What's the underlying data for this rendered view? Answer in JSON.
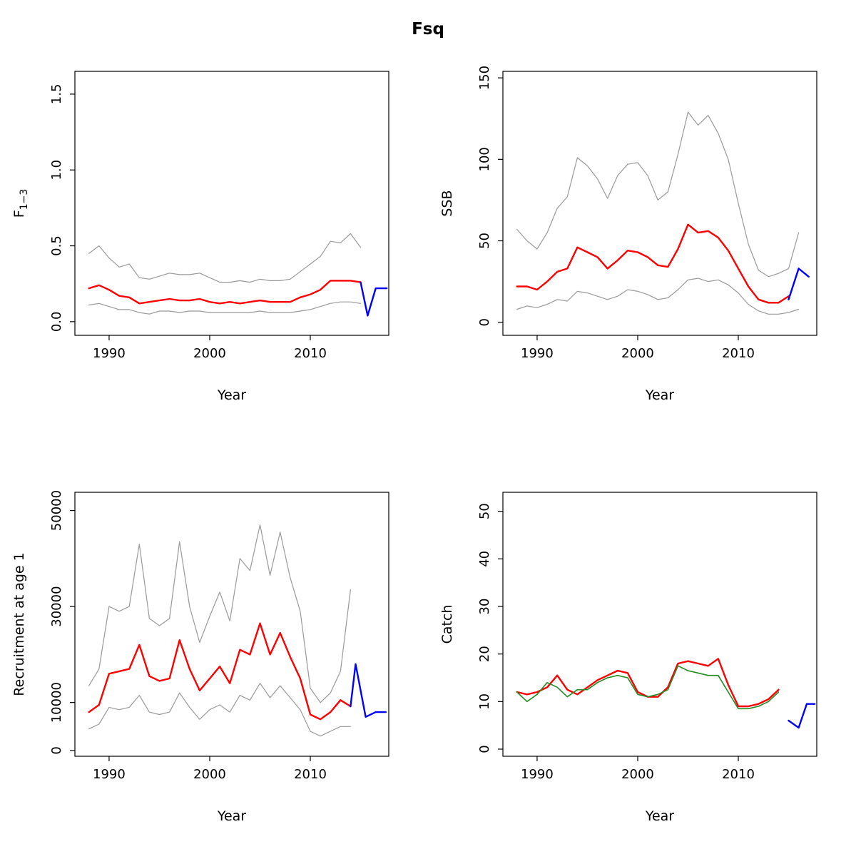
{
  "title": "Fsq",
  "colors": {
    "estimate": "#ff0000",
    "forecast": "#0000ff",
    "confidence_interval": "#999999",
    "observed": "#228b22",
    "axis": "#000000"
  },
  "chart_data": [
    {
      "type": "line",
      "panel": "fishing-mortality",
      "xlabel": "Year",
      "ylabel": "F",
      "ylabel_sub": "1−3",
      "xlim": [
        1986.6,
        2017.8
      ],
      "ylim": [
        -0.09,
        1.65
      ],
      "xticks": [
        1990,
        2000,
        2010
      ],
      "xtick_labels": [
        "1990",
        "2000",
        "2010"
      ],
      "yticks": [
        0,
        0.5,
        1,
        1.5
      ],
      "ytick_labels": [
        "0.0",
        "0.5",
        "1.0",
        "1.5"
      ],
      "series": [
        {
          "name": "upper-ci",
          "color": "#999999",
          "width": 1.2,
          "x0": 1988,
          "values": [
            0.45,
            0.5,
            0.42,
            0.36,
            0.38,
            0.29,
            0.28,
            0.3,
            0.32,
            0.31,
            0.31,
            0.32,
            0.29,
            0.26,
            0.26,
            0.27,
            0.26,
            0.28,
            0.27,
            0.27,
            0.28,
            0.33,
            0.38,
            0.43,
            0.53,
            0.52,
            0.58,
            0.49
          ]
        },
        {
          "name": "lower-ci",
          "color": "#999999",
          "width": 1.2,
          "x0": 1988,
          "values": [
            0.11,
            0.12,
            0.1,
            0.08,
            0.08,
            0.06,
            0.05,
            0.07,
            0.07,
            0.06,
            0.07,
            0.07,
            0.06,
            0.06,
            0.06,
            0.06,
            0.06,
            0.07,
            0.06,
            0.06,
            0.06,
            0.07,
            0.08,
            0.1,
            0.12,
            0.13,
            0.13,
            0.12
          ]
        },
        {
          "name": "estimate",
          "color": "#ff0000",
          "width": 2.4,
          "x0": 1988,
          "values": [
            0.22,
            0.24,
            0.21,
            0.17,
            0.16,
            0.12,
            0.13,
            0.14,
            0.15,
            0.14,
            0.14,
            0.15,
            0.13,
            0.12,
            0.13,
            0.12,
            0.13,
            0.14,
            0.13,
            0.13,
            0.13,
            0.16,
            0.18,
            0.21,
            0.27,
            0.27,
            0.27,
            0.26
          ]
        },
        {
          "name": "forecast",
          "color": "#0000ff",
          "width": 2.4,
          "x": [
            2015,
            2015.7,
            2016.5,
            2017.6
          ],
          "values": [
            0.26,
            0.04,
            0.22,
            0.22
          ]
        }
      ]
    },
    {
      "type": "line",
      "panel": "ssb",
      "xlabel": "Year",
      "ylabel": "SSB",
      "xlim": [
        1986.6,
        2017.8
      ],
      "ylim": [
        -8,
        154
      ],
      "xticks": [
        1990,
        2000,
        2010
      ],
      "xtick_labels": [
        "1990",
        "2000",
        "2010"
      ],
      "yticks": [
        0,
        50,
        100,
        150
      ],
      "ytick_labels": [
        "0",
        "50",
        "100",
        "150"
      ],
      "series": [
        {
          "name": "upper-ci",
          "color": "#999999",
          "width": 1.2,
          "x0": 1988,
          "values": [
            57,
            50,
            45,
            55,
            70,
            77,
            101,
            96,
            88,
            76,
            90,
            97,
            98,
            90,
            75,
            80,
            103,
            129,
            121,
            127,
            116,
            100,
            73,
            48,
            32,
            28,
            30,
            33,
            55
          ]
        },
        {
          "name": "lower-ci",
          "color": "#999999",
          "width": 1.2,
          "x0": 1988,
          "values": [
            8,
            10,
            9,
            11,
            14,
            13,
            19,
            18,
            16,
            14,
            16,
            20,
            19,
            17,
            14,
            15,
            20,
            26,
            27,
            25,
            26,
            23,
            18,
            11,
            7,
            5,
            5,
            6,
            8
          ]
        },
        {
          "name": "estimate",
          "color": "#ff0000",
          "width": 2.4,
          "x0": 1988,
          "values": [
            22,
            22,
            20,
            25,
            31,
            33,
            46,
            43,
            40,
            33,
            38,
            44,
            43,
            40,
            35,
            34,
            45,
            60,
            55,
            56,
            52,
            44,
            33,
            22,
            14,
            12,
            12,
            16
          ]
        },
        {
          "name": "forecast",
          "color": "#0000ff",
          "width": 2.4,
          "x": [
            2015,
            2016,
            2017
          ],
          "values": [
            14,
            33,
            28
          ]
        }
      ]
    },
    {
      "type": "line",
      "panel": "recruitment",
      "xlabel": "Year",
      "ylabel": "Recruitment at age 1",
      "xlim": [
        1986.6,
        2017.8
      ],
      "ylim": [
        -1200,
        53800
      ],
      "xticks": [
        1990,
        2000,
        2010
      ],
      "xtick_labels": [
        "1990",
        "2000",
        "2010"
      ],
      "yticks": [
        0,
        10000,
        30000,
        50000
      ],
      "ytick_labels": [
        "0",
        "10000",
        "30000",
        "50000"
      ],
      "series": [
        {
          "name": "upper-ci",
          "color": "#999999",
          "width": 1.2,
          "x0": 1988,
          "values": [
            13500,
            17000,
            30000,
            29000,
            30000,
            43000,
            27500,
            26000,
            27500,
            43500,
            30000,
            22500,
            28000,
            33000,
            27000,
            40000,
            37500,
            47000,
            36500,
            45500,
            36000,
            29000,
            13000,
            10000,
            12000,
            16500,
            33500
          ]
        },
        {
          "name": "lower-ci",
          "color": "#999999",
          "width": 1.2,
          "x0": 1988,
          "values": [
            4500,
            5500,
            9000,
            8500,
            9000,
            11500,
            8000,
            7500,
            8000,
            12000,
            9000,
            6500,
            8500,
            9500,
            8000,
            11500,
            10500,
            14000,
            11000,
            13500,
            11000,
            8500,
            4000,
            3000,
            4000,
            5000,
            5000
          ]
        },
        {
          "name": "estimate",
          "color": "#ff0000",
          "width": 2.4,
          "x0": 1988,
          "values": [
            8000,
            9500,
            16000,
            16500,
            17000,
            22000,
            15500,
            14500,
            15000,
            23000,
            17000,
            12500,
            15000,
            17500,
            14000,
            21000,
            20000,
            26500,
            20000,
            24500,
            19500,
            15000,
            7500,
            6500,
            8000,
            10500,
            9200
          ]
        },
        {
          "name": "forecast",
          "color": "#0000ff",
          "width": 2.4,
          "x": [
            2014,
            2014.5,
            2015.5,
            2016.5,
            2017.5
          ],
          "values": [
            9200,
            18000,
            7000,
            8000,
            8000
          ]
        }
      ]
    },
    {
      "type": "line",
      "panel": "catch",
      "xlabel": "Year",
      "ylabel": "Catch",
      "xlim": [
        1986.6,
        2017.8
      ],
      "ylim": [
        -1.5,
        54
      ],
      "xticks": [
        1990,
        2000,
        2010
      ],
      "xtick_labels": [
        "1990",
        "2000",
        "2010"
      ],
      "yticks": [
        0,
        10,
        20,
        30,
        40,
        50
      ],
      "ytick_labels": [
        "0",
        "10",
        "20",
        "30",
        "40",
        "50"
      ],
      "series": [
        {
          "name": "estimate",
          "color": "#ff0000",
          "width": 2.4,
          "x0": 1988,
          "values": [
            12,
            11.5,
            12,
            13,
            15.5,
            12.5,
            11.5,
            13,
            14.5,
            15.5,
            16.5,
            16,
            12,
            11,
            11,
            13,
            18,
            18.5,
            18,
            17.5,
            19,
            13.5,
            9,
            9,
            9.5,
            10.5,
            12.5
          ]
        },
        {
          "name": "observed",
          "color": "#228b22",
          "width": 1.6,
          "x0": 1988,
          "values": [
            12,
            10,
            11.5,
            14,
            13,
            11,
            12.5,
            12.5,
            14,
            15,
            15.5,
            15,
            11.5,
            11,
            11.5,
            12.5,
            17.5,
            16.5,
            16,
            15.5,
            15.5,
            12,
            8.5,
            8.5,
            9,
            10,
            12
          ]
        },
        {
          "name": "forecast",
          "color": "#0000ff",
          "width": 2.4,
          "x": [
            2015,
            2016,
            2016.8,
            2017.6
          ],
          "values": [
            6,
            4.5,
            9.5,
            9.5
          ]
        }
      ]
    }
  ]
}
